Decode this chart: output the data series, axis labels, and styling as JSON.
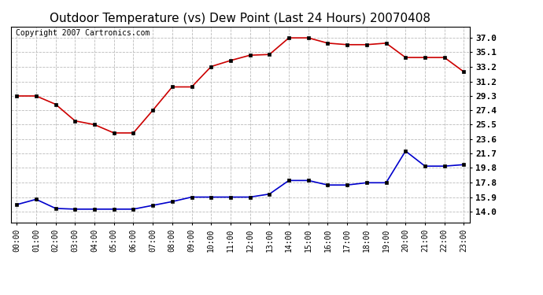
{
  "title": "Outdoor Temperature (vs) Dew Point (Last 24 Hours) 20070408",
  "copyright_text": "Copyright 2007 Cartronics.com",
  "hours": [
    "00:00",
    "01:00",
    "02:00",
    "03:00",
    "04:00",
    "05:00",
    "06:00",
    "07:00",
    "08:00",
    "09:00",
    "10:00",
    "11:00",
    "12:00",
    "13:00",
    "14:00",
    "15:00",
    "16:00",
    "17:00",
    "18:00",
    "19:00",
    "20:00",
    "21:00",
    "22:00",
    "23:00"
  ],
  "temp_red": [
    29.3,
    29.3,
    28.2,
    26.0,
    25.5,
    24.4,
    24.4,
    27.4,
    30.5,
    30.5,
    33.2,
    34.0,
    34.7,
    34.8,
    37.0,
    37.0,
    36.3,
    36.1,
    36.1,
    36.3,
    34.4,
    34.4,
    34.4,
    32.5
  ],
  "dew_blue": [
    14.9,
    15.6,
    14.4,
    14.3,
    14.3,
    14.3,
    14.3,
    14.8,
    15.3,
    15.9,
    15.9,
    15.9,
    15.9,
    16.3,
    18.1,
    18.1,
    17.5,
    17.5,
    17.8,
    17.8,
    22.0,
    20.0,
    20.0,
    20.2
  ],
  "yticks": [
    14.0,
    15.9,
    17.8,
    19.8,
    21.7,
    23.6,
    25.5,
    27.4,
    29.3,
    31.2,
    33.2,
    35.1,
    37.0
  ],
  "ymin": 12.5,
  "ymax": 38.5,
  "red_color": "#cc0000",
  "blue_color": "#0000cc",
  "bg_color": "#ffffff",
  "grid_color": "#bbbbbb",
  "title_fontsize": 11,
  "copyright_fontsize": 7,
  "xtick_fontsize": 7,
  "ytick_fontsize": 8
}
